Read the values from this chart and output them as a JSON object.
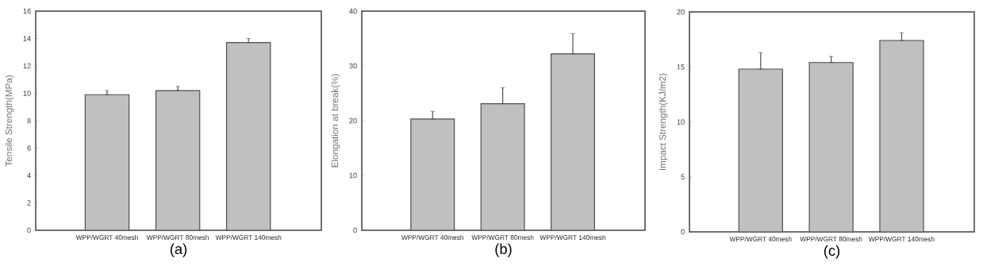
{
  "chart_data": [
    {
      "type": "bar",
      "title": "(a)",
      "ylabel": "Tensile Strength(MPa)",
      "categories": [
        "WPP/WGRT 40mesh",
        "WPP/WGRT 80mesh",
        "WPP/WGRT 140mesh"
      ],
      "values": [
        9.9,
        10.2,
        13.7
      ],
      "errors": [
        [
          9.9,
          10.2
        ],
        [
          10.2,
          10.5
        ],
        [
          13.7,
          14.0
        ]
      ],
      "color": "#c0c0c0",
      "ylim": [
        0,
        16
      ],
      "yticks": [
        0,
        2,
        4,
        6,
        8,
        10,
        12,
        14,
        16
      ]
    },
    {
      "type": "bar",
      "title": "(b)",
      "ylabel": "Elongation at break(%)",
      "categories": [
        "WPP/WGRT 40mesh",
        "WPP/WGRT 80mesh",
        "WPP/WGRT 140mesh"
      ],
      "values": [
        20.3,
        23.1,
        32.2
      ],
      "errors": [
        [
          20.3,
          21.7
        ],
        [
          23.1,
          26.0
        ],
        [
          32.2,
          35.9
        ]
      ],
      "color": "#c0c0c0",
      "ylim": [
        0,
        40
      ],
      "yticks": [
        0,
        10,
        20,
        30,
        40
      ]
    },
    {
      "type": "bar",
      "title": "(c)",
      "ylabel": "Impact Strength(KJ/m2)",
      "categories": [
        "WPP/WGRT 40mesh",
        "WPP/WGRT 80mesh",
        "WPP/WGRT 140mesh"
      ],
      "values": [
        14.8,
        15.4,
        17.4
      ],
      "errors": [
        [
          14.8,
          16.3
        ],
        [
          15.4,
          15.95
        ],
        [
          17.4,
          18.1
        ]
      ],
      "color": "#c0c0c0",
      "ylim": [
        0,
        20
      ],
      "yticks": [
        0,
        5,
        10,
        15,
        20
      ]
    }
  ]
}
